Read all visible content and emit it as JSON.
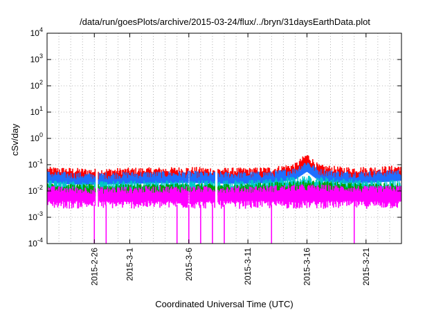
{
  "chart_data": {
    "type": "area",
    "title": "/data/run/goesPlots/archive/2015-03-24/flux/../bryn/31daysEarthData.plot",
    "xlabel": "Coordinated Universal Time (UTC)",
    "ylabel": "cSv/day",
    "yscale": "log",
    "ylim": [
      0.0001,
      10000
    ],
    "xlim": [
      "2015-02-22",
      "2015-03-24"
    ],
    "grid": true,
    "legend": "none",
    "y_ticks": [
      {
        "base": "10",
        "exp": "-4",
        "value": 0.0001
      },
      {
        "base": "10",
        "exp": "-3",
        "value": 0.001
      },
      {
        "base": "10",
        "exp": "-2",
        "value": 0.01
      },
      {
        "base": "10",
        "exp": "-1",
        "value": 0.1
      },
      {
        "base": "10",
        "exp": "0",
        "value": 1
      },
      {
        "base": "10",
        "exp": "1",
        "value": 10
      },
      {
        "base": "10",
        "exp": "2",
        "value": 100
      },
      {
        "base": "10",
        "exp": "3",
        "value": 1000
      },
      {
        "base": "10",
        "exp": "4",
        "value": 10000
      }
    ],
    "x_ticks": [
      {
        "label": "2015-2-26",
        "date": "2015-02-26"
      },
      {
        "label": "2015-3-1",
        "date": "2015-03-01"
      },
      {
        "label": "2015-3-6",
        "date": "2015-03-06"
      },
      {
        "label": "2015-3-11",
        "date": "2015-03-11"
      },
      {
        "label": "2015-3-16",
        "date": "2015-03-16"
      },
      {
        "label": "2015-3-21",
        "date": "2015-03-21"
      }
    ],
    "series": [
      {
        "color": "#ff0000",
        "x": [
          "2015-02-22",
          "2015-02-24",
          "2015-02-26",
          "2015-03-01",
          "2015-03-04",
          "2015-03-06",
          "2015-03-09",
          "2015-03-11",
          "2015-03-13",
          "2015-03-15",
          "2015-03-16",
          "2015-03-17",
          "2015-03-19",
          "2015-03-21",
          "2015-03-23",
          "2015-03-24"
        ],
        "values": [
          0.065,
          0.06,
          0.055,
          0.06,
          0.062,
          0.065,
          0.06,
          0.06,
          0.065,
          0.09,
          0.22,
          0.08,
          0.065,
          0.065,
          0.07,
          0.08
        ]
      },
      {
        "color": "#1e6fff",
        "x": [
          "2015-02-22",
          "2015-02-24",
          "2015-02-26",
          "2015-03-01",
          "2015-03-04",
          "2015-03-06",
          "2015-03-09",
          "2015-03-11",
          "2015-03-13",
          "2015-03-15",
          "2015-03-16",
          "2015-03-17",
          "2015-03-19",
          "2015-03-21",
          "2015-03-23",
          "2015-03-24"
        ],
        "values": [
          0.045,
          0.04,
          0.038,
          0.042,
          0.044,
          0.045,
          0.042,
          0.042,
          0.045,
          0.06,
          0.12,
          0.055,
          0.045,
          0.045,
          0.05,
          0.055
        ]
      },
      {
        "color": "#00c8c8",
        "x": [
          "2015-02-22",
          "2015-02-26",
          "2015-03-04",
          "2015-03-11",
          "2015-03-16",
          "2015-03-21",
          "2015-03-24"
        ],
        "values": [
          0.02,
          0.018,
          0.02,
          0.02,
          0.03,
          0.02,
          0.022
        ]
      },
      {
        "color": "#00a000",
        "x": [
          "2015-02-22",
          "2015-02-26",
          "2015-03-04",
          "2015-03-11",
          "2015-03-16",
          "2015-03-21",
          "2015-03-24"
        ],
        "values": [
          0.015,
          0.014,
          0.015,
          0.015,
          0.02,
          0.015,
          0.016
        ]
      },
      {
        "color": "#ff00ff",
        "x": [
          "2015-02-22",
          "2015-02-26",
          "2015-03-04",
          "2015-03-11",
          "2015-03-16",
          "2015-03-21",
          "2015-03-24"
        ],
        "values": [
          0.012,
          0.011,
          0.012,
          0.012,
          0.014,
          0.012,
          0.013
        ]
      }
    ],
    "dropouts": [
      "2015-02-26",
      "2015-02-27",
      "2015-03-05",
      "2015-03-06",
      "2015-03-07",
      "2015-03-08",
      "2015-03-09",
      "2015-03-13",
      "2015-03-20"
    ]
  }
}
